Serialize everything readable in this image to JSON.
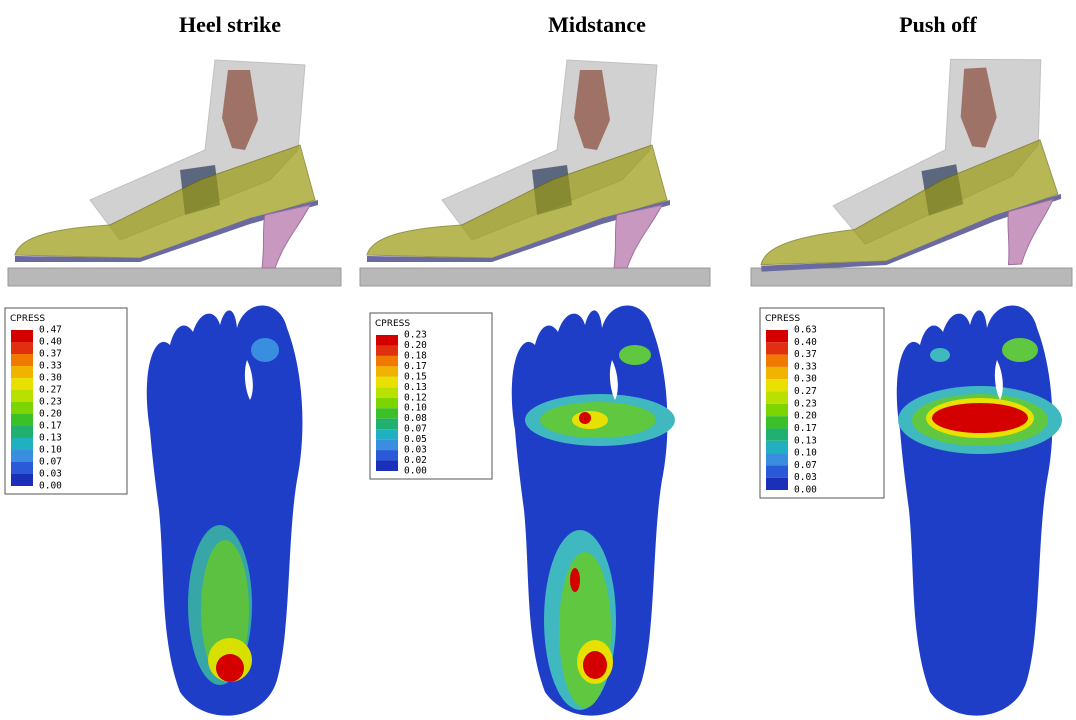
{
  "panels": [
    {
      "title": "Heel strike",
      "legend": {
        "title": "CPRESS",
        "values": [
          "0.47",
          "0.40",
          "0.37",
          "0.33",
          "0.30",
          "0.27",
          "0.23",
          "0.20",
          "0.17",
          "0.13",
          "0.10",
          "0.07",
          "0.03",
          "0.00"
        ]
      }
    },
    {
      "title": "Midstance",
      "legend": {
        "title": "CPRESS",
        "values": [
          "0.23",
          "0.20",
          "0.18",
          "0.17",
          "0.15",
          "0.13",
          "0.12",
          "0.10",
          "0.08",
          "0.07",
          "0.05",
          "0.03",
          "0.02",
          "0.00"
        ]
      }
    },
    {
      "title": "Push off",
      "legend": {
        "title": "CPRESS",
        "values": [
          "0.63",
          "0.40",
          "0.37",
          "0.33",
          "0.30",
          "0.27",
          "0.23",
          "0.20",
          "0.17",
          "0.13",
          "0.10",
          "0.07",
          "0.03",
          "0.00"
        ]
      }
    }
  ]
}
